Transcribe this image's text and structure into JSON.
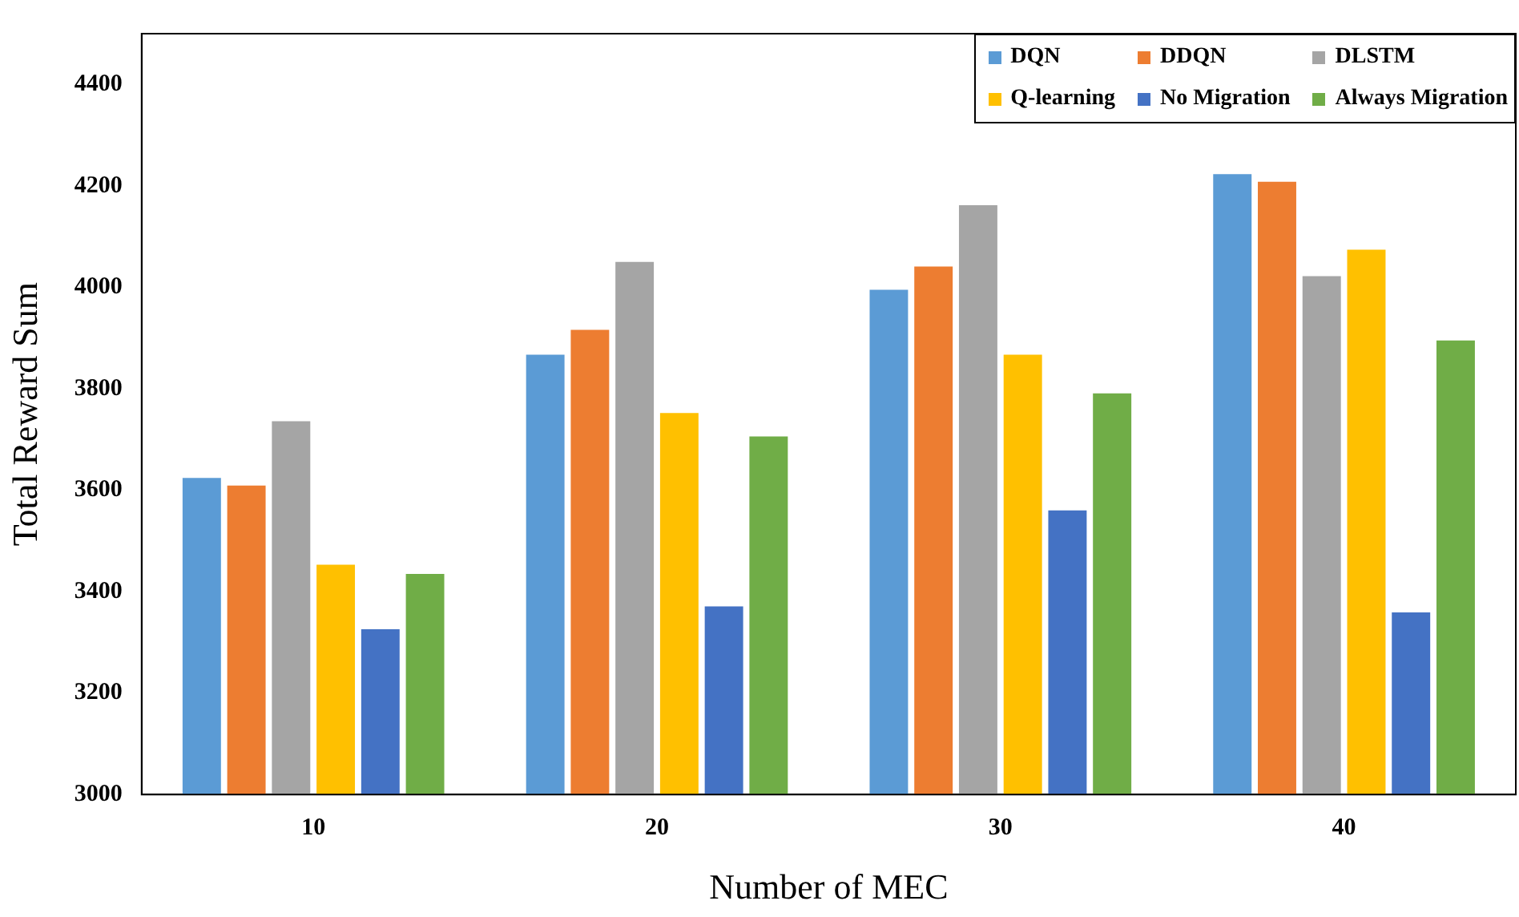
{
  "chart_data": {
    "type": "bar",
    "xlabel": "Number of MEC",
    "ylabel": "Total Reward Sum",
    "categories": [
      "10",
      "20",
      "30",
      "40"
    ],
    "ylim": [
      3000,
      4500
    ],
    "yticks": [
      3000,
      3200,
      3400,
      3600,
      3800,
      4000,
      4200,
      4400
    ],
    "grid": false,
    "legend": "top right",
    "series": [
      {
        "name": "DQN",
        "color": "#5b9bd5",
        "values": [
          3624,
          3867,
          3995,
          4223
        ]
      },
      {
        "name": "DDQN",
        "color": "#ed7d31",
        "values": [
          3609,
          3916,
          4041,
          4208
        ]
      },
      {
        "name": "DLSTM",
        "color": "#a5a5a5",
        "values": [
          3736,
          4050,
          4162,
          4022
        ]
      },
      {
        "name": "Q-learning",
        "color": "#ffc000",
        "values": [
          3453,
          3752,
          3867,
          4074
        ]
      },
      {
        "name": "No Migration",
        "color": "#4472c4",
        "values": [
          3326,
          3371,
          3560,
          3359
        ]
      },
      {
        "name": "Always Migration",
        "color": "#70ad47",
        "values": [
          3435,
          3706,
          3791,
          3895
        ]
      }
    ]
  }
}
